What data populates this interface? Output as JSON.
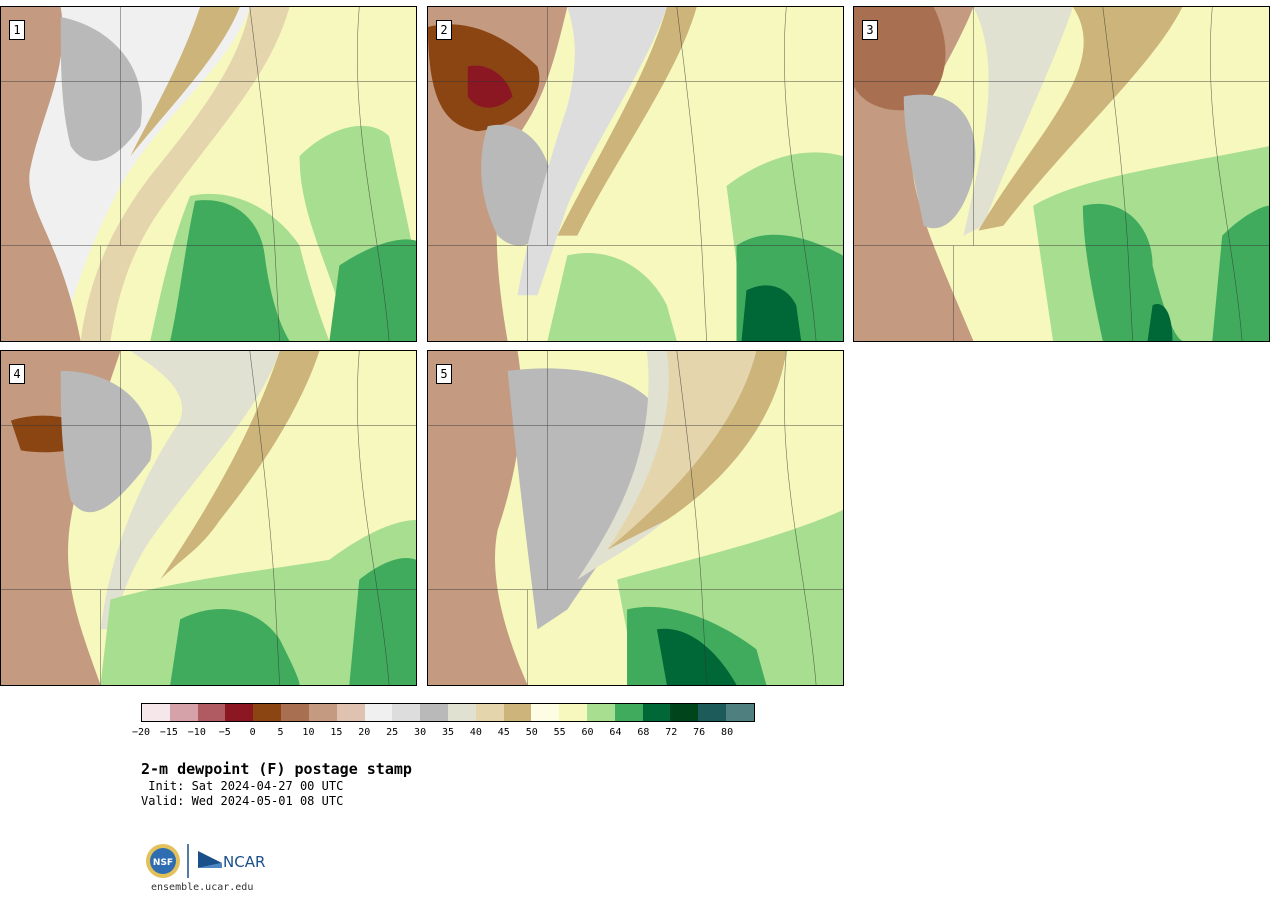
{
  "panels": [
    {
      "label": "1",
      "variant": 1
    },
    {
      "label": "2",
      "variant": 2
    },
    {
      "label": "3",
      "variant": 3
    },
    {
      "label": "4",
      "variant": 4
    },
    {
      "label": "5",
      "variant": 5
    }
  ],
  "colorbar": {
    "colors": [
      "#f6e8ea",
      "#d4a2a8",
      "#b05a62",
      "#8b1722",
      "#8a4513",
      "#a87050",
      "#c49a80",
      "#e0c2b0",
      "#f0f0f0",
      "#dddddd",
      "#b9b9b9",
      "#e1e1d1",
      "#e4d5ac",
      "#ccb47a",
      "#fdfde3",
      "#f7f8be",
      "#a7de8f",
      "#41ab5d",
      "#006837",
      "#00441b",
      "#1d5a5a",
      "#4f7f7f"
    ],
    "ticks": [
      "−20",
      "−15",
      "−10",
      "−5",
      "0",
      "5",
      "10",
      "15",
      "20",
      "25",
      "30",
      "35",
      "40",
      "45",
      "50",
      "55",
      "60",
      "64",
      "68",
      "72",
      "76",
      "80"
    ]
  },
  "title": "2-m dewpoint (F) postage stamp",
  "init": " Init: Sat 2024-04-27 00 UTC",
  "valid": "Valid: Wed 2024-05-01 08 UTC",
  "logos": {
    "nsf": "NSF",
    "ncar": "NCAR"
  },
  "url": "ensemble.ucar.edu"
}
